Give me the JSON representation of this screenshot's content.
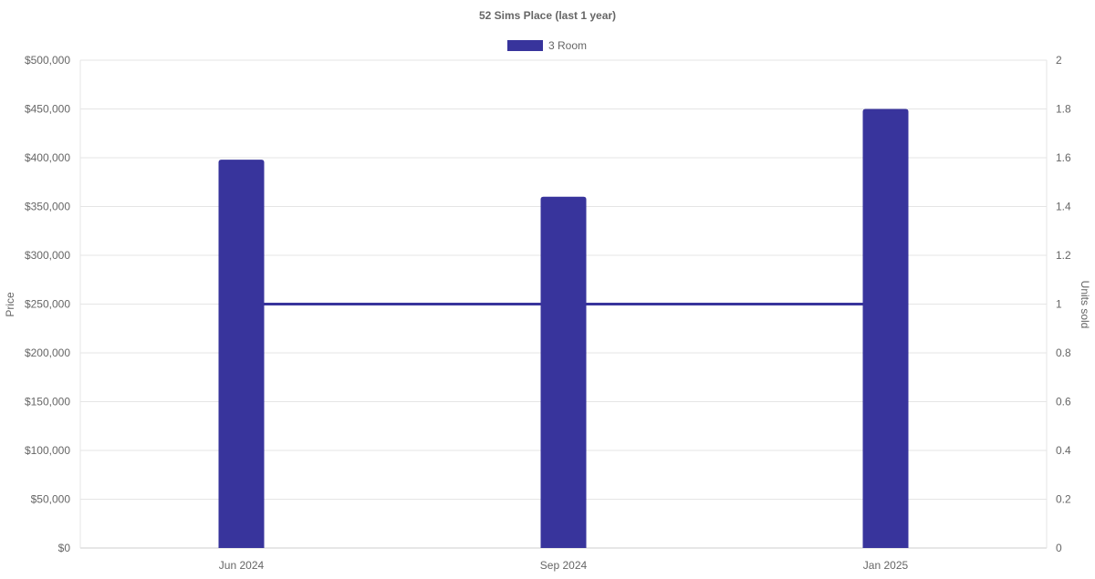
{
  "chart_data": {
    "type": "bar",
    "title": "52 Sims Place (last 1 year)",
    "categories": [
      "Jun 2024",
      "Sep 2024",
      "Jan 2025"
    ],
    "series": [
      {
        "name": "3 Room",
        "type": "bar",
        "axis": "left",
        "values": [
          398000,
          360000,
          450000
        ]
      },
      {
        "type": "line",
        "axis": "right",
        "values": [
          1,
          1,
          1
        ]
      }
    ],
    "ylabel": "Price",
    "y2label": "Units sold",
    "ylim": [
      0,
      500000
    ],
    "y2lim": [
      0,
      2
    ],
    "yticks": [
      "$0",
      "$50,000",
      "$100,000",
      "$150,000",
      "$200,000",
      "$250,000",
      "$300,000",
      "$350,000",
      "$400,000",
      "$450,000",
      "$500,000"
    ],
    "y2ticks": [
      "0",
      "0.2",
      "0.4",
      "0.6",
      "0.8",
      "1",
      "1.2",
      "1.4",
      "1.6",
      "1.8",
      "2"
    ],
    "grid": true,
    "legend": "top",
    "color": "#38349c"
  }
}
